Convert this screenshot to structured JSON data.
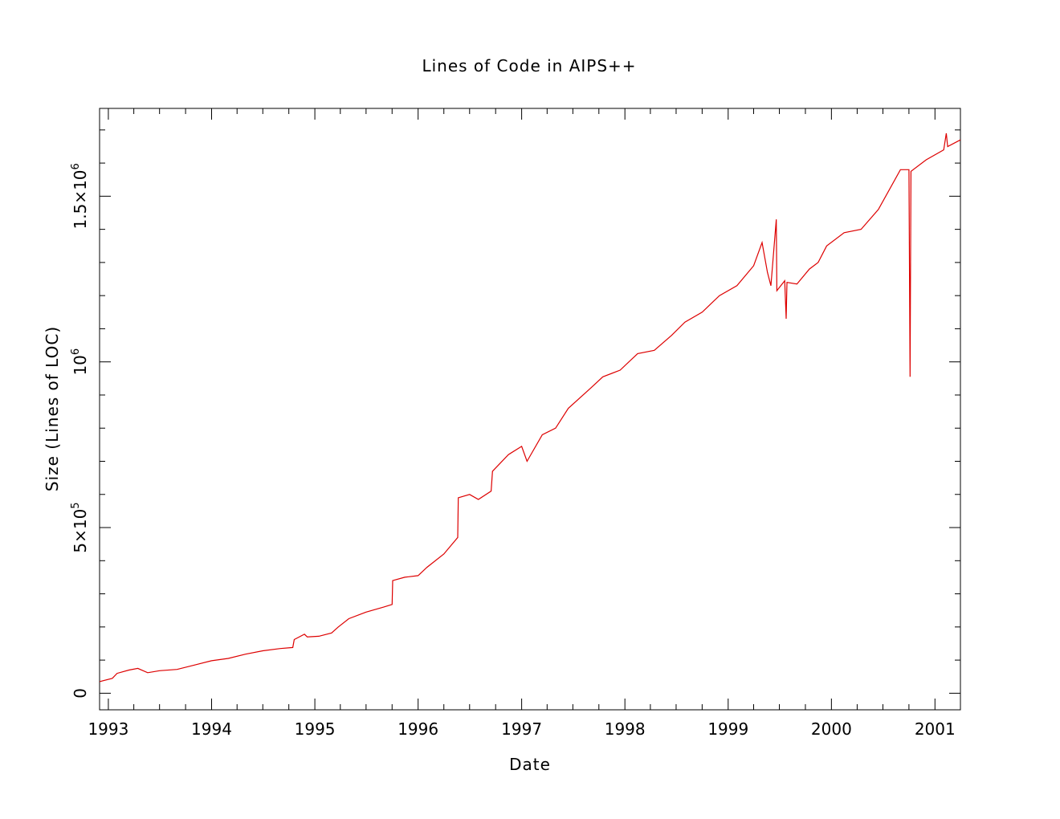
{
  "chart_data": {
    "type": "line",
    "title": "Lines of Code in AIPS++",
    "xlabel": "Date",
    "ylabel": "Size (Lines of LOC)",
    "xlim": [
      "1992-12-01",
      "2001-04-01"
    ],
    "ylim": [
      -50000,
      1765000
    ],
    "grid": false,
    "legend": "none",
    "x_ticks": [
      {
        "date": "1993-01-01",
        "label": "1993"
      },
      {
        "date": "1994-01-01",
        "label": "1994"
      },
      {
        "date": "1995-01-01",
        "label": "1995"
      },
      {
        "date": "1996-01-01",
        "label": "1996"
      },
      {
        "date": "1997-01-01",
        "label": "1997"
      },
      {
        "date": "1998-01-01",
        "label": "1998"
      },
      {
        "date": "1999-01-01",
        "label": "1999"
      },
      {
        "date": "2000-01-01",
        "label": "2000"
      },
      {
        "date": "2001-01-01",
        "label": "2001"
      }
    ],
    "y_ticks": [
      {
        "value": 0,
        "mantissa": "0",
        "exponent": ""
      },
      {
        "value": 500000,
        "mantissa": "5×10",
        "exponent": "5"
      },
      {
        "value": 1000000,
        "mantissa": "10",
        "exponent": "6"
      },
      {
        "value": 1500000,
        "mantissa": "1.5×10",
        "exponent": "6"
      }
    ],
    "series": [
      {
        "color": "#dd0000",
        "points": [
          [
            "1992-12-01",
            35000
          ],
          [
            "1993-01-15",
            45000
          ],
          [
            "1993-02-01",
            60000
          ],
          [
            "1993-03-15",
            70000
          ],
          [
            "1993-04-15",
            75000
          ],
          [
            "1993-05-20",
            62000
          ],
          [
            "1993-07-01",
            68000
          ],
          [
            "1993-09-01",
            72000
          ],
          [
            "1993-11-01",
            85000
          ],
          [
            "1994-01-01",
            98000
          ],
          [
            "1994-03-01",
            105000
          ],
          [
            "1994-05-01",
            118000
          ],
          [
            "1994-07-01",
            128000
          ],
          [
            "1994-09-01",
            135000
          ],
          [
            "1994-10-15",
            138000
          ],
          [
            "1994-10-20",
            162000
          ],
          [
            "1994-11-25",
            178000
          ],
          [
            "1994-12-05",
            170000
          ],
          [
            "1995-01-15",
            172000
          ],
          [
            "1995-03-01",
            182000
          ],
          [
            "1995-03-25",
            200000
          ],
          [
            "1995-05-01",
            225000
          ],
          [
            "1995-07-01",
            245000
          ],
          [
            "1995-09-01",
            260000
          ],
          [
            "1995-10-01",
            268000
          ],
          [
            "1995-10-03",
            340000
          ],
          [
            "1995-11-15",
            350000
          ],
          [
            "1996-01-01",
            355000
          ],
          [
            "1996-02-01",
            380000
          ],
          [
            "1996-04-01",
            420000
          ],
          [
            "1996-05-20",
            470000
          ],
          [
            "1996-05-22",
            590000
          ],
          [
            "1996-07-01",
            600000
          ],
          [
            "1996-08-01",
            585000
          ],
          [
            "1996-09-15",
            610000
          ],
          [
            "1996-09-20",
            670000
          ],
          [
            "1996-11-15",
            720000
          ],
          [
            "1997-01-01",
            745000
          ],
          [
            "1997-01-20",
            700000
          ],
          [
            "1997-03-15",
            780000
          ],
          [
            "1997-05-01",
            800000
          ],
          [
            "1997-06-15",
            860000
          ],
          [
            "1997-09-01",
            920000
          ],
          [
            "1997-10-15",
            955000
          ],
          [
            "1997-12-15",
            975000
          ],
          [
            "1998-02-15",
            1025000
          ],
          [
            "1998-04-15",
            1035000
          ],
          [
            "1998-06-15",
            1080000
          ],
          [
            "1998-08-01",
            1120000
          ],
          [
            "1998-10-01",
            1150000
          ],
          [
            "1998-12-01",
            1200000
          ],
          [
            "1999-02-01",
            1230000
          ],
          [
            "1999-04-01",
            1290000
          ],
          [
            "1999-05-01",
            1360000
          ],
          [
            "1999-05-20",
            1270000
          ],
          [
            "1999-06-01",
            1230000
          ],
          [
            "1999-06-20",
            1430000
          ],
          [
            "1999-06-22",
            1215000
          ],
          [
            "1999-07-20",
            1245000
          ],
          [
            "1999-07-25",
            1130000
          ],
          [
            "1999-07-28",
            1240000
          ],
          [
            "1999-09-01",
            1235000
          ],
          [
            "1999-10-15",
            1280000
          ],
          [
            "1999-11-15",
            1300000
          ],
          [
            "1999-12-15",
            1350000
          ],
          [
            "2000-02-15",
            1390000
          ],
          [
            "2000-04-15",
            1400000
          ],
          [
            "2000-06-15",
            1460000
          ],
          [
            "2000-09-01",
            1580000
          ],
          [
            "2000-10-01",
            1580000
          ],
          [
            "2000-10-05",
            955000
          ],
          [
            "2000-10-08",
            1575000
          ],
          [
            "2000-12-01",
            1610000
          ],
          [
            "2001-02-01",
            1640000
          ],
          [
            "2001-02-10",
            1690000
          ],
          [
            "2001-02-15",
            1650000
          ],
          [
            "2001-04-01",
            1670000
          ]
        ]
      }
    ]
  }
}
